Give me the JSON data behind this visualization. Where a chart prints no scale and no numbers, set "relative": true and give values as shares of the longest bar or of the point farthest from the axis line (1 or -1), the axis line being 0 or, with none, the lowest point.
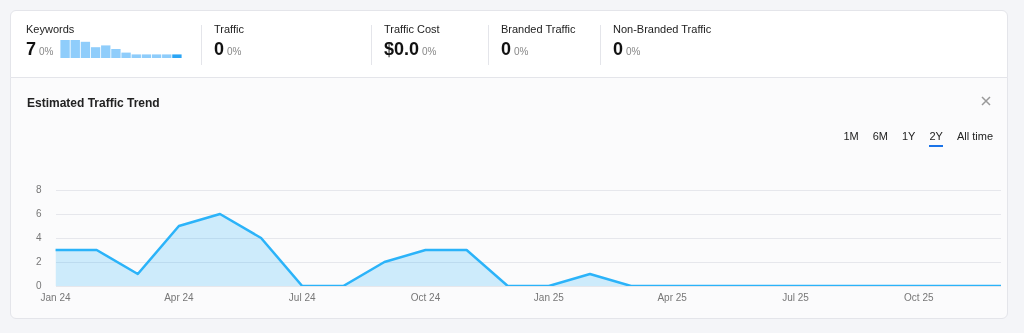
{
  "chart_data": [
    {
      "type": "other",
      "annotations": [
        "Keywords",
        "7",
        "0%",
        "Traffic",
        "0",
        "0%",
        "Traffic Cost",
        "$0.0",
        "0%",
        "Branded Traffic",
        "0",
        "0%",
        "Non-Branded Traffic",
        "0",
        "0%"
      ]
    },
    {
      "type": "bar",
      "relative": true,
      "categories": [
        null,
        null,
        null,
        null,
        null,
        null,
        null,
        null,
        null,
        null,
        null,
        null
      ],
      "values": [
        1,
        1,
        0.9,
        0.6,
        0.7,
        0.5,
        0.3,
        0.2,
        0.2,
        0.2,
        0.2,
        0.2
      ],
      "colors": [
        "#8fcdfb",
        "#8fcdfb",
        "#8fcdfb",
        "#8fcdfb",
        "#8fcdfb",
        "#8fcdfb",
        "#8fcdfb",
        "#8fcdfb",
        "#8fcdfb",
        "#8fcdfb",
        "#8fcdfb",
        "#2aa5f5"
      ]
    },
    {
      "type": "area",
      "title": "Estimated Traffic Trend",
      "annotations": [
        "1M",
        "6M",
        "1Y",
        "2Y",
        "All time"
      ],
      "categories": [
        "Jan 24",
        null,
        null,
        "Apr 24",
        null,
        null,
        "Jul 24",
        null,
        null,
        "Oct 24",
        null,
        null,
        "Jan 25",
        null,
        null,
        "Apr 25",
        null,
        null,
        "Jul 25",
        null,
        null,
        "Oct 25",
        null,
        null
      ],
      "series": [
        {
          "color": "#2bb3f9",
          "values": [
            3,
            3,
            1,
            5,
            6,
            4,
            0,
            0,
            2,
            3,
            3,
            0,
            0,
            1,
            0,
            0,
            0,
            0,
            0,
            0,
            0,
            0,
            0,
            0
          ]
        }
      ],
      "ylim": [
        0,
        8
      ],
      "yticks": [
        0,
        2,
        4,
        6,
        8
      ],
      "grid": "y",
      "marker": "none",
      "line_style": "solid"
    }
  ]
}
